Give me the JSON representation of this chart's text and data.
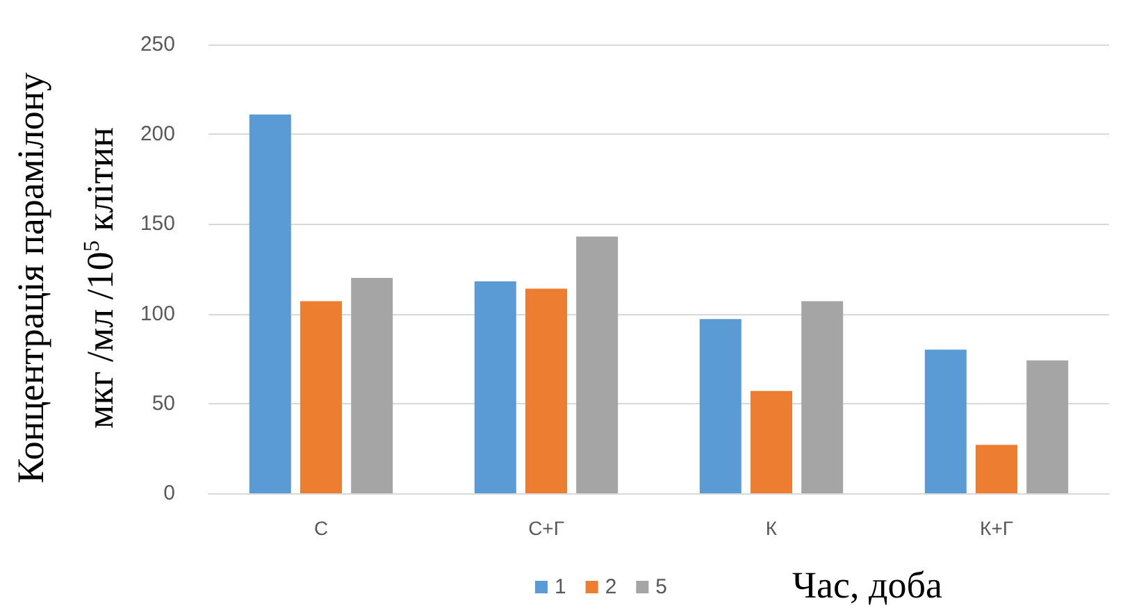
{
  "chart_data": {
    "type": "bar",
    "ylabel": "Концентрація парамілону\nмкг /мл /10$^{5}$ клітин",
    "xlabel": "Час, доба",
    "categories": [
      "С",
      "С+Г",
      "К",
      "К+Г"
    ],
    "series": [
      {
        "name": "1",
        "color": "#5b9bd5",
        "values": [
          211,
          118,
          97,
          80
        ]
      },
      {
        "name": "2",
        "color": "#ed7d31",
        "values": [
          107,
          114,
          57,
          27
        ]
      },
      {
        "name": "5",
        "color": "#a5a5a5",
        "values": [
          120,
          143,
          107,
          74
        ]
      }
    ],
    "ylim": [
      0,
      250
    ],
    "yticks": [
      0,
      50,
      100,
      150,
      200,
      250
    ],
    "grid": "y",
    "legend": "bottom"
  }
}
